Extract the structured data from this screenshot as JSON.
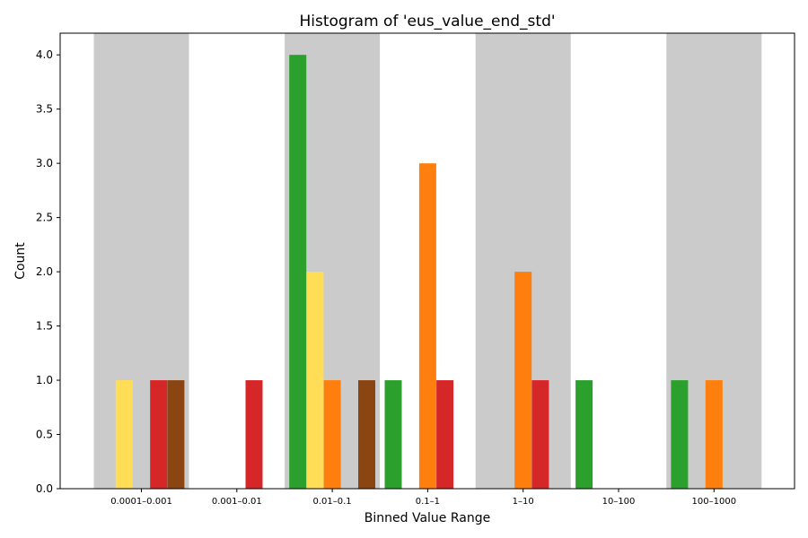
{
  "chart_data": {
    "type": "bar",
    "title": "Histogram of 'eus_value_end_std'",
    "xlabel": "Binned Value Range",
    "ylabel": "Count",
    "ylim": [
      0,
      4.2
    ],
    "yticks": [
      "0.0",
      "0.5",
      "1.0",
      "1.5",
      "2.0",
      "2.5",
      "3.0",
      "3.5",
      "4.0"
    ],
    "categories": [
      "0.0001–0.001",
      "0.001–0.01",
      "0.01–0.1",
      "0.1–1",
      "1–10",
      "10–100",
      "100–1000"
    ],
    "shaded_categories": [
      0,
      2,
      4,
      6
    ],
    "shade_color": "#cbcbcb",
    "series": [
      {
        "color": "#2ca02c",
        "values": [
          0,
          0,
          4,
          1,
          0,
          1,
          1
        ]
      },
      {
        "color": "#ffdd57",
        "values": [
          1,
          0,
          2,
          0,
          0,
          0,
          0
        ]
      },
      {
        "color": "#ff7f0e",
        "values": [
          0,
          0,
          1,
          3,
          2,
          0,
          1
        ]
      },
      {
        "color": "#d62728",
        "values": [
          1,
          1,
          0,
          1,
          1,
          0,
          0
        ]
      },
      {
        "color": "#8b4513",
        "values": [
          1,
          0,
          1,
          0,
          0,
          0,
          0
        ]
      }
    ]
  }
}
